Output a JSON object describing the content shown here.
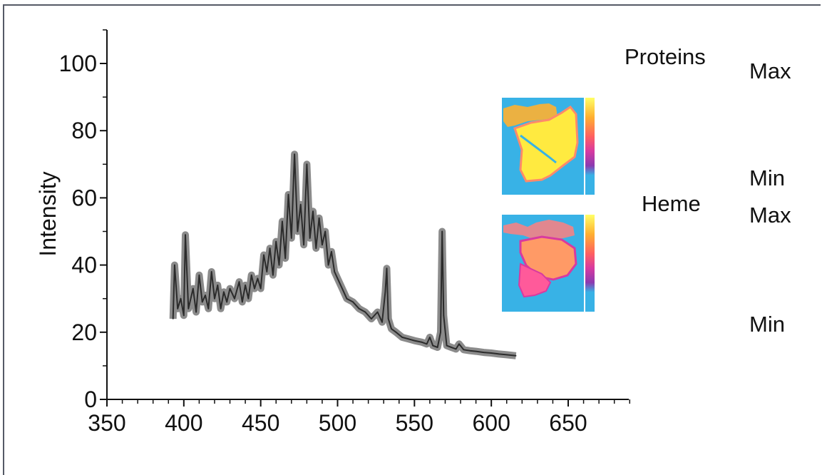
{
  "chart_data": {
    "type": "line",
    "title": "",
    "xlabel": "",
    "ylabel": "Intensity",
    "xlim": [
      350,
      690
    ],
    "ylim": [
      0,
      110
    ],
    "x_ticks": [
      350,
      400,
      450,
      500,
      550,
      600,
      650
    ],
    "y_ticks": [
      0,
      20,
      40,
      60,
      80,
      100
    ],
    "grid": false,
    "series": [
      {
        "color": "#2b2b2b",
        "x": [
          393,
          394,
          396,
          398,
          400,
          401,
          403,
          406,
          408,
          410,
          412,
          414,
          416,
          418,
          420,
          422,
          424,
          426,
          428,
          430,
          433,
          436,
          438,
          440,
          442,
          444,
          446,
          448,
          450,
          452,
          454,
          456,
          458,
          460,
          462,
          464,
          466,
          468,
          470,
          472,
          474,
          476,
          478,
          480,
          482,
          484,
          486,
          488,
          490,
          492,
          494,
          496,
          498,
          500,
          503,
          506,
          510,
          514,
          518,
          522,
          526,
          529,
          531,
          532,
          533,
          535,
          538,
          542,
          546,
          550,
          555,
          558,
          560,
          562,
          565,
          567,
          568,
          569,
          571,
          574,
          577,
          579,
          582,
          586,
          590,
          595,
          600,
          605,
          610,
          616
        ],
        "y": [
          24,
          40,
          27,
          30,
          25,
          49,
          27,
          33,
          26,
          37,
          29,
          31,
          27,
          38,
          30,
          34,
          27,
          32,
          29,
          33,
          30,
          35,
          29,
          34,
          30,
          37,
          33,
          36,
          33,
          43,
          38,
          45,
          37,
          47,
          40,
          53,
          42,
          61,
          48,
          73,
          50,
          58,
          46,
          70,
          48,
          56,
          45,
          54,
          46,
          50,
          40,
          44,
          38,
          36,
          33,
          30,
          29,
          27,
          26,
          24,
          26,
          23,
          32,
          39,
          24,
          21,
          20,
          18.5,
          18,
          17.5,
          17,
          16.5,
          18.5,
          16,
          15.5,
          20,
          50,
          25,
          16,
          15.5,
          15,
          16.5,
          14.8,
          14.5,
          14.3,
          14,
          13.8,
          13.5,
          13.3,
          13
        ]
      }
    ]
  },
  "inset_panel": {
    "labels": {
      "proteins": "Proteins",
      "heme": "Heme",
      "proteins_max": "Max",
      "proteins_min": "Min",
      "heme_max": "Max",
      "heme_min": "Min"
    },
    "colorscale": [
      "#ffff66",
      "#ffb030",
      "#ff6060",
      "#d83aa0",
      "#8c3ab0",
      "#38b2e6"
    ]
  }
}
